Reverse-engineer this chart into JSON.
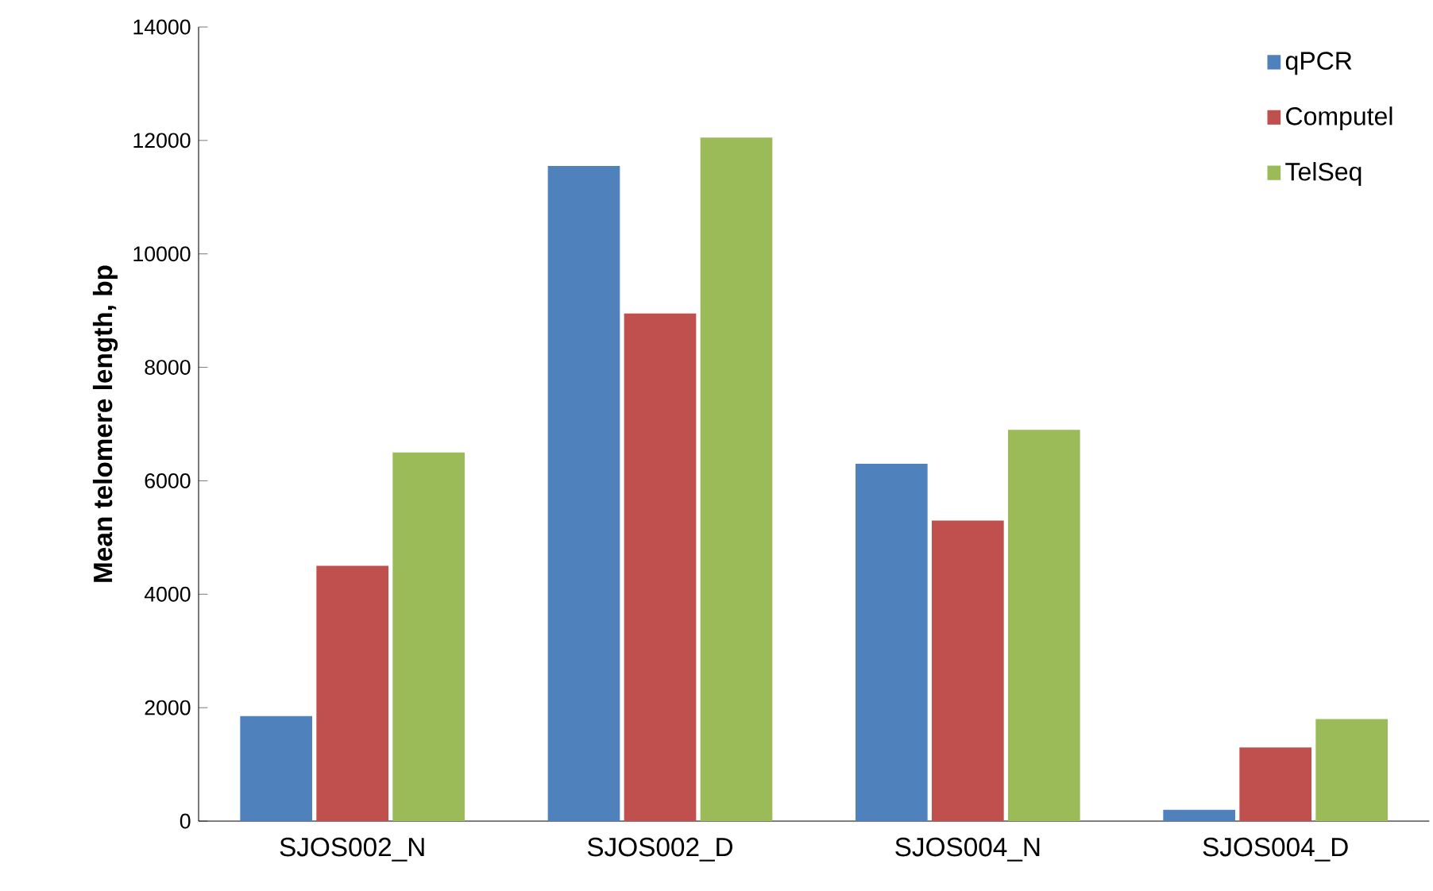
{
  "chart_data": {
    "type": "bar",
    "ylabel": "Mean telomere length, bp",
    "categories": [
      "SJOS002_N",
      "SJOS002_D",
      "SJOS004_N",
      "SJOS004_D"
    ],
    "series": [
      {
        "name": "qPCR",
        "color": "#4f81bd",
        "values": [
          1850,
          11550,
          6300,
          200
        ]
      },
      {
        "name": "Computel",
        "color": "#c0504d",
        "values": [
          4500,
          8950,
          5300,
          1300
        ]
      },
      {
        "name": "TelSeq",
        "color": "#9bbb59",
        "values": [
          6500,
          12050,
          6900,
          1800
        ]
      }
    ],
    "ylim": [
      0,
      14000
    ],
    "yticks": [
      0,
      2000,
      4000,
      6000,
      8000,
      10000,
      12000,
      14000
    ],
    "legend": "top right",
    "grid": false
  }
}
